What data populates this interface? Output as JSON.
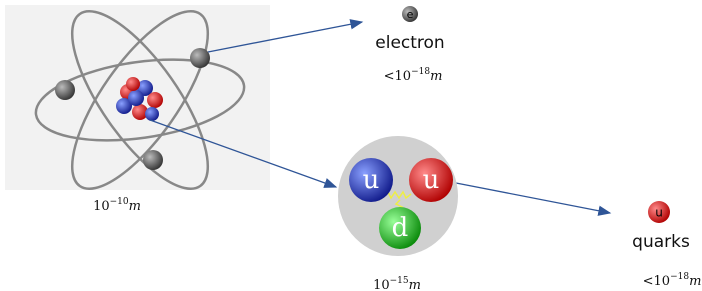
{
  "electron": {
    "symbol": "e",
    "label": "electron",
    "size": {
      "prefix": "<",
      "base": "10",
      "exponent": "−18",
      "unit": "m"
    }
  },
  "atom": {
    "size": {
      "base": "10",
      "exponent": "−10",
      "unit": "m"
    }
  },
  "proton": {
    "quarks": [
      "u",
      "u",
      "d"
    ],
    "size": {
      "base": "10",
      "exponent": "−15",
      "unit": "m"
    }
  },
  "quark": {
    "symbol": "u",
    "label": "quarks",
    "size": {
      "prefix": "<",
      "base": "10",
      "exponent": "−18",
      "unit": "m"
    }
  }
}
